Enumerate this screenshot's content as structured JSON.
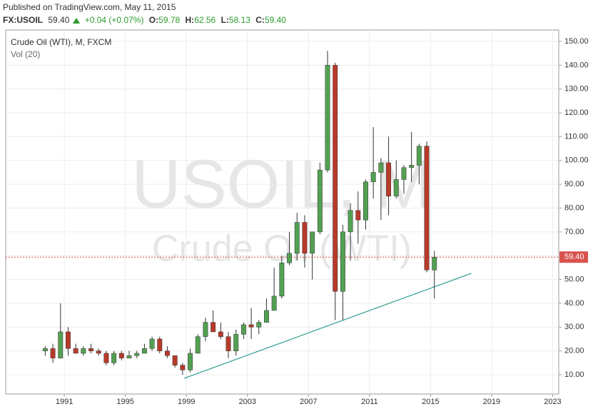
{
  "header": {
    "published": "Published on TradingView.com, May 11, 2015",
    "symbol": "FX:USOIL",
    "last": "59.40",
    "change": "+0.04 (+0.07%)",
    "ohlc": [
      {
        "label": "O:",
        "value": "59.78"
      },
      {
        "label": "H:",
        "value": "62.56"
      },
      {
        "label": "L:",
        "value": "58.13"
      },
      {
        "label": "C:",
        "value": "59.40"
      }
    ]
  },
  "chart_data": {
    "type": "candlestick",
    "title": "Crude Oil (WTI), M, FXCM",
    "subtitle": "Vol (20)",
    "watermark": [
      "USOIL, M",
      "Crude Oil (WTI)"
    ],
    "up_color": "#53a053",
    "down_color": "#b83a2a",
    "wick_color": "#333333",
    "grid": true,
    "x": [
      1989.75,
      1990.25,
      1990.75,
      1991.25,
      1991.75,
      1992.25,
      1992.75,
      1993.25,
      1993.75,
      1994.25,
      1994.75,
      1995.25,
      1995.75,
      1996.25,
      1996.75,
      1997.25,
      1997.75,
      1998.25,
      1998.75,
      1999.25,
      1999.75,
      2000.25,
      2000.75,
      2001.25,
      2001.75,
      2002.25,
      2002.75,
      2003.25,
      2003.75,
      2004.25,
      2004.75,
      2005.25,
      2005.75,
      2006.25,
      2006.75,
      2007.25,
      2007.75,
      2008.25,
      2008.75,
      2009.25,
      2009.75,
      2010.25,
      2010.75,
      2011.25,
      2011.75,
      2012.25,
      2012.75,
      2013.25,
      2013.75,
      2014.25,
      2014.75,
      2015.25
    ],
    "open": [
      20,
      21,
      17,
      28,
      21,
      19,
      21,
      20,
      19,
      15,
      19,
      17,
      18,
      19,
      21,
      25,
      20,
      18,
      14,
      12,
      19,
      26,
      32,
      28,
      26,
      20,
      27,
      31,
      30,
      32,
      37,
      43,
      57,
      61,
      74,
      61,
      70,
      96,
      140,
      45,
      70,
      79,
      75,
      91,
      95,
      99,
      85,
      92,
      97,
      98,
      106,
      54
    ],
    "high": [
      22,
      23,
      40,
      30,
      23,
      22,
      23,
      21,
      20,
      20,
      20,
      20,
      20,
      23,
      26,
      26,
      22,
      18,
      15,
      21,
      27,
      34,
      37,
      32,
      28,
      29,
      32,
      38,
      33,
      42,
      55,
      60,
      70,
      78,
      77,
      70,
      99,
      146,
      141,
      73,
      82,
      87,
      92,
      114,
      101,
      110,
      100,
      98,
      112,
      107,
      108,
      62
    ],
    "low": [
      18,
      15,
      17,
      18,
      19,
      18,
      19,
      18,
      14,
      14,
      16,
      17,
      17,
      19,
      20,
      19,
      17,
      13,
      10,
      11,
      19,
      24,
      29,
      25,
      17,
      18,
      25,
      25,
      27,
      32,
      37,
      42,
      56,
      58,
      55,
      50,
      69,
      95,
      33,
      33,
      58,
      65,
      71,
      84,
      75,
      77,
      84,
      86,
      91,
      90,
      53,
      42
    ],
    "close": [
      21,
      17,
      28,
      21,
      19,
      21,
      20,
      19,
      15,
      19,
      17,
      18,
      19,
      21,
      25,
      20,
      18,
      14,
      12,
      19,
      26,
      32,
      28,
      26,
      20,
      27,
      31,
      30,
      32,
      37,
      43,
      57,
      61,
      74,
      61,
      70,
      96,
      140,
      45,
      70,
      79,
      75,
      91,
      95,
      99,
      85,
      92,
      97,
      98,
      106,
      54,
      59.4
    ],
    "last_price": {
      "value": 59.4,
      "label": "59.40"
    },
    "last_color": "#d9534f",
    "trendline": {
      "x": [
        1998.86,
        2017.67
      ],
      "y": [
        8.5,
        52.6
      ],
      "color": "#2a9d8f"
    },
    "xlim": [
      1987.16,
      2023.4
    ],
    "xticks": [
      1991,
      1995,
      1999,
      2003,
      2007,
      2011,
      2015,
      2019,
      2023
    ],
    "ylim": [
      1.9,
      153.9
    ],
    "yticks": [
      {
        "value": 10,
        "label": "10.00"
      },
      {
        "value": 20,
        "label": "20.00"
      },
      {
        "value": 30,
        "label": "30.00"
      },
      {
        "value": 40,
        "label": "40.00"
      },
      {
        "value": 50,
        "label": "50.00"
      },
      {
        "value": 60,
        "label": "60.00"
      },
      {
        "value": 70,
        "label": "70.00"
      },
      {
        "value": 80,
        "label": "80.00"
      },
      {
        "value": 90,
        "label": "90.00"
      },
      {
        "value": 100,
        "label": "100.00"
      },
      {
        "value": 110,
        "label": "110.00"
      },
      {
        "value": 120,
        "label": "120.00"
      },
      {
        "value": 130,
        "label": "130.00"
      },
      {
        "value": 140,
        "label": "140.00"
      },
      {
        "value": 150,
        "label": "150.00"
      }
    ]
  }
}
